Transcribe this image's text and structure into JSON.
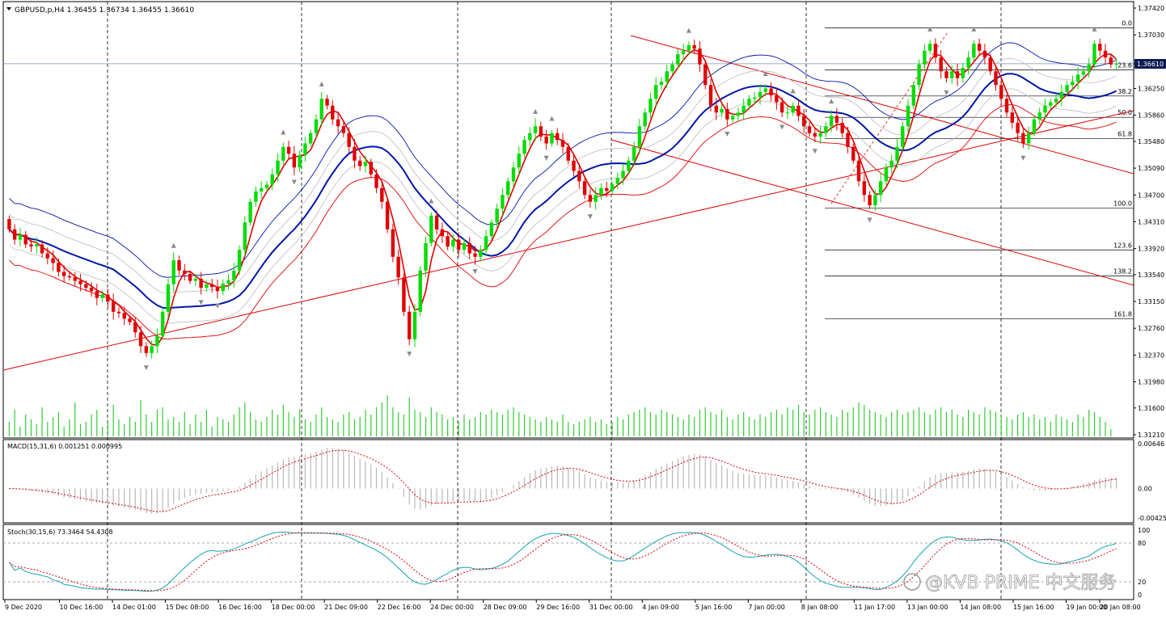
{
  "symbol_header": "GBPUSD,p,H4  1.36455 1.36734 1.36455 1.36610",
  "macd_header": "MACD(15,31,6) 0.001251 0.000995",
  "stoch_header": "Stoch(30,15,6) 73.3464 54.4308",
  "watermark": "@KVB PRIME 中文服务",
  "colors": {
    "bull": "#00dc00",
    "bear": "#e00000",
    "ma_fast": "#e00000",
    "ma_mid": "#0016a8",
    "envelope": "#0016a8",
    "trend": "#e00000",
    "volume": "#33cc33",
    "macd_signal": "#e00000",
    "stoch_main": "#17a2b0",
    "stoch_signal": "#e00000",
    "current_price_bg": "#0b1a52"
  },
  "chart_data": {
    "type": "candlestick",
    "price_axis": {
      "range": [
        1.3121,
        1.3742
      ],
      "ticks": [
        "1.37420",
        "1.37030",
        "1.36610",
        "1.36250",
        "1.35860",
        "1.35480",
        "1.35090",
        "1.34700",
        "1.34310",
        "1.33920",
        "1.33540",
        "1.33150",
        "1.32760",
        "1.32370",
        "1.31980",
        "1.31600",
        "1.31210"
      ],
      "current_price": "1.36610"
    },
    "time_labels": [
      "9 Dec 2020",
      "10 Dec 16:00",
      "14 Dec 01:00",
      "15 Dec 08:00",
      "16 Dec 16:00",
      "18 Dec 00:00",
      "21 Dec 09:00",
      "22 Dec 16:00",
      "24 Dec 00:00",
      "28 Dec 09:00",
      "29 Dec 16:00",
      "31 Dec 00:00",
      "4 Jan 09:00",
      "5 Jan 16:00",
      "7 Jan 00:00",
      "8 Jan 08:00",
      "11 Jan 17:00",
      "13 Jan 00:00",
      "14 Jan 08:00",
      "15 Jan 16:00",
      "19 Jan 00:00",
      "20 Jan 08:00"
    ],
    "fibonacci": [
      {
        "label": "0.0",
        "price": 1.3713
      },
      {
        "label": "23.6",
        "price": 1.3652
      },
      {
        "label": "38.2",
        "price": 1.3614
      },
      {
        "label": "50.0",
        "price": 1.3583
      },
      {
        "label": "61.8",
        "price": 1.3552
      },
      {
        "label": "100.0",
        "price": 1.3451
      },
      {
        "label": "123.6",
        "price": 1.339
      },
      {
        "label": "138.2",
        "price": 1.3352
      },
      {
        "label": "161.8",
        "price": 1.329
      }
    ],
    "macd_axis": {
      "ticks": [
        "0.00646",
        "0.00",
        "-0.00425"
      ],
      "range": [
        -0.00425,
        0.00646
      ]
    },
    "stoch_axis": {
      "ticks": [
        "100",
        "80",
        "20",
        "0"
      ],
      "range": [
        0,
        100
      ]
    },
    "closes": [
      1.342,
      1.3405,
      1.3412,
      1.3398,
      1.3395,
      1.3398,
      1.3385,
      1.3378,
      1.3371,
      1.3358,
      1.3352,
      1.335,
      1.3345,
      1.334,
      1.3335,
      1.333,
      1.332,
      1.3325,
      1.3315,
      1.33,
      1.3298,
      1.329,
      1.3285,
      1.327,
      1.325,
      1.324,
      1.325,
      1.3265,
      1.33,
      1.334,
      1.3375,
      1.336,
      1.3355,
      1.3345,
      1.3348,
      1.3335,
      1.334,
      1.3336,
      1.333,
      1.3341,
      1.3346,
      1.336,
      1.339,
      1.343,
      1.346,
      1.3475,
      1.348,
      1.3485,
      1.35,
      1.352,
      1.354,
      1.353,
      1.351,
      1.3528,
      1.3545,
      1.356,
      1.358,
      1.361,
      1.36,
      1.358,
      1.357,
      1.356,
      1.354,
      1.352,
      1.3512,
      1.3518,
      1.35,
      1.348,
      1.346,
      1.342,
      1.338,
      1.335,
      1.33,
      1.326,
      1.33,
      1.336,
      1.34,
      1.344,
      1.342,
      1.341,
      1.3395,
      1.3405,
      1.339,
      1.34,
      1.3385,
      1.338,
      1.339,
      1.341,
      1.343,
      1.345,
      1.347,
      1.349,
      1.351,
      1.353,
      1.355,
      1.356,
      1.357,
      1.3555,
      1.3545,
      1.356,
      1.355,
      1.354,
      1.352,
      1.3505,
      1.349,
      1.347,
      1.346,
      1.347,
      1.348,
      1.3476,
      1.3486,
      1.3495,
      1.3505,
      1.352,
      1.354,
      1.357,
      1.359,
      1.361,
      1.363,
      1.3635,
      1.365,
      1.366,
      1.3675,
      1.368,
      1.3688,
      1.3683,
      1.366,
      1.363,
      1.36,
      1.359,
      1.3595,
      1.358,
      1.3585,
      1.359,
      1.36,
      1.361,
      1.3612,
      1.362,
      1.3625,
      1.3615,
      1.3605,
      1.359,
      1.359,
      1.36,
      1.3585,
      1.357,
      1.356,
      1.3555,
      1.356,
      1.357,
      1.3585,
      1.3575,
      1.356,
      1.354,
      1.352,
      1.349,
      1.347,
      1.3455,
      1.347,
      1.349,
      1.351,
      1.352,
      1.354,
      1.357,
      1.36,
      1.363,
      1.366,
      1.368,
      1.369,
      1.367,
      1.365,
      1.364,
      1.365,
      1.364,
      1.3655,
      1.367,
      1.369,
      1.368,
      1.367,
      1.365,
      1.363,
      1.361,
      1.359,
      1.3575,
      1.356,
      1.3545,
      1.356,
      1.358,
      1.359,
      1.36,
      1.3605,
      1.361,
      1.362,
      1.363,
      1.3635,
      1.3645,
      1.365,
      1.366,
      1.369,
      1.368,
      1.367,
      1.366,
      1.3661
    ],
    "volumes": [
      0.3,
      0.55,
      0.2,
      0.45,
      0.35,
      0.25,
      0.6,
      0.3,
      0.4,
      0.5,
      0.2,
      0.35,
      0.7,
      0.25,
      0.3,
      0.45,
      0.55,
      0.2,
      0.3,
      0.65,
      0.35,
      0.25,
      0.4,
      0.3,
      0.75,
      0.45,
      0.3,
      0.55,
      0.6,
      0.35,
      0.4,
      0.3,
      0.5,
      0.25,
      0.45,
      0.3,
      0.55,
      0.2,
      0.4,
      0.35,
      0.3,
      0.45,
      0.6,
      0.7,
      0.5,
      0.35,
      0.3,
      0.4,
      0.55,
      0.45,
      0.65,
      0.5,
      0.4,
      0.55,
      0.35,
      0.3,
      0.45,
      0.6,
      0.4,
      0.35,
      0.3,
      0.45,
      0.5,
      0.35,
      0.4,
      0.55,
      0.45,
      0.6,
      0.7,
      0.85,
      0.6,
      0.5,
      0.45,
      0.8,
      0.55,
      0.5,
      0.4,
      0.6,
      0.5,
      0.45,
      0.35,
      0.4,
      0.3,
      0.45,
      0.35,
      0.4,
      0.5,
      0.45,
      0.55,
      0.5,
      0.45,
      0.55,
      0.6,
      0.5,
      0.45,
      0.4,
      0.35,
      0.3,
      0.4,
      0.35,
      0.3,
      0.45,
      0.3,
      0.25,
      0.3,
      0.35,
      0.4,
      0.3,
      0.35,
      0.25,
      0.3,
      0.4,
      0.35,
      0.45,
      0.5,
      0.55,
      0.6,
      0.5,
      0.45,
      0.55,
      0.5,
      0.45,
      0.4,
      0.35,
      0.45,
      0.4,
      0.55,
      0.6,
      0.5,
      0.45,
      0.55,
      0.4,
      0.35,
      0.45,
      0.5,
      0.4,
      0.35,
      0.45,
      0.4,
      0.5,
      0.55,
      0.45,
      0.6,
      0.55,
      0.65,
      0.5,
      0.45,
      0.55,
      0.6,
      0.5,
      0.45,
      0.4,
      0.55,
      0.5,
      0.6,
      0.7,
      0.65,
      0.55,
      0.5,
      0.45,
      0.4,
      0.5,
      0.55,
      0.45,
      0.5,
      0.55,
      0.6,
      0.5,
      0.45,
      0.55,
      0.6,
      0.5,
      0.55,
      0.45,
      0.4,
      0.55,
      0.5,
      0.45,
      0.6,
      0.55,
      0.5,
      0.45,
      0.4,
      0.35,
      0.45,
      0.5,
      0.4,
      0.45,
      0.35,
      0.4,
      0.3,
      0.45,
      0.4,
      0.35,
      0.3,
      0.45,
      0.4,
      0.55,
      0.5,
      0.4,
      0.3,
      0.15
    ]
  }
}
